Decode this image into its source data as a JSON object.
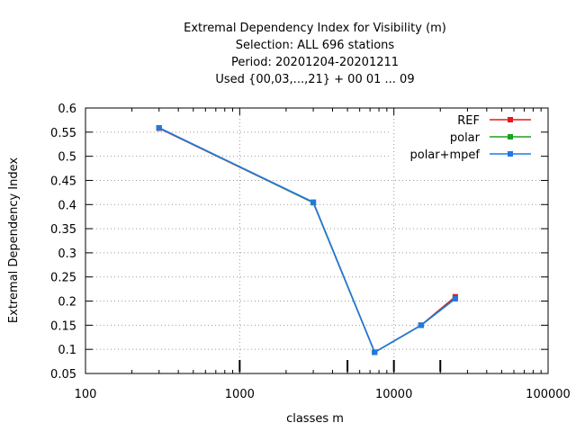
{
  "chart_data": {
    "type": "line",
    "title_lines": [
      "Extremal Dependency Index  for Visibility (m)",
      "Selection: ALL    696 stations",
      "Period: 20201204-20201211",
      "Used {00,03,...,21} + 00 01 ... 09"
    ],
    "xlabel": "classes m",
    "ylabel": "Extremal Dependency Index",
    "x_scale": "log",
    "xlim": [
      100,
      100000
    ],
    "ylim": [
      0.05,
      0.6
    ],
    "x_ticks": [
      {
        "value": 100,
        "label": "100"
      },
      {
        "value": 1000,
        "label": "1000"
      },
      {
        "value": 10000,
        "label": "10000"
      },
      {
        "value": 100000,
        "label": "100000"
      }
    ],
    "y_ticks": [
      {
        "value": 0.05,
        "label": "0.05"
      },
      {
        "value": 0.1,
        "label": "0.1"
      },
      {
        "value": 0.15,
        "label": "0.15"
      },
      {
        "value": 0.2,
        "label": "0.2"
      },
      {
        "value": 0.25,
        "label": "0.25"
      },
      {
        "value": 0.3,
        "label": "0.3"
      },
      {
        "value": 0.35,
        "label": "0.35"
      },
      {
        "value": 0.4,
        "label": "0.4"
      },
      {
        "value": 0.45,
        "label": "0.45"
      },
      {
        "value": 0.5,
        "label": "0.5"
      },
      {
        "value": 0.55,
        "label": "0.55"
      },
      {
        "value": 0.6,
        "label": "0.6"
      }
    ],
    "x_observation_marks": [
      1000,
      5000,
      10000,
      20000
    ],
    "grid": true,
    "legend_position": "top-right",
    "series": [
      {
        "name": "REF",
        "color": "#e31a1c",
        "x": [
          300,
          3000,
          7500,
          15000,
          25000
        ],
        "y": [
          0.558,
          0.404,
          0.094,
          0.15,
          0.209
        ]
      },
      {
        "name": "polar",
        "color": "#1ea01e",
        "x": [
          300,
          3000,
          7500,
          15000,
          25000
        ],
        "y": [
          0.559,
          0.404,
          0.094,
          0.15,
          0.205
        ]
      },
      {
        "name": "polar+mpef",
        "color": "#1f78e6",
        "x": [
          300,
          3000,
          7500,
          15000,
          25000
        ],
        "y": [
          0.559,
          0.405,
          0.094,
          0.15,
          0.205
        ]
      }
    ]
  }
}
